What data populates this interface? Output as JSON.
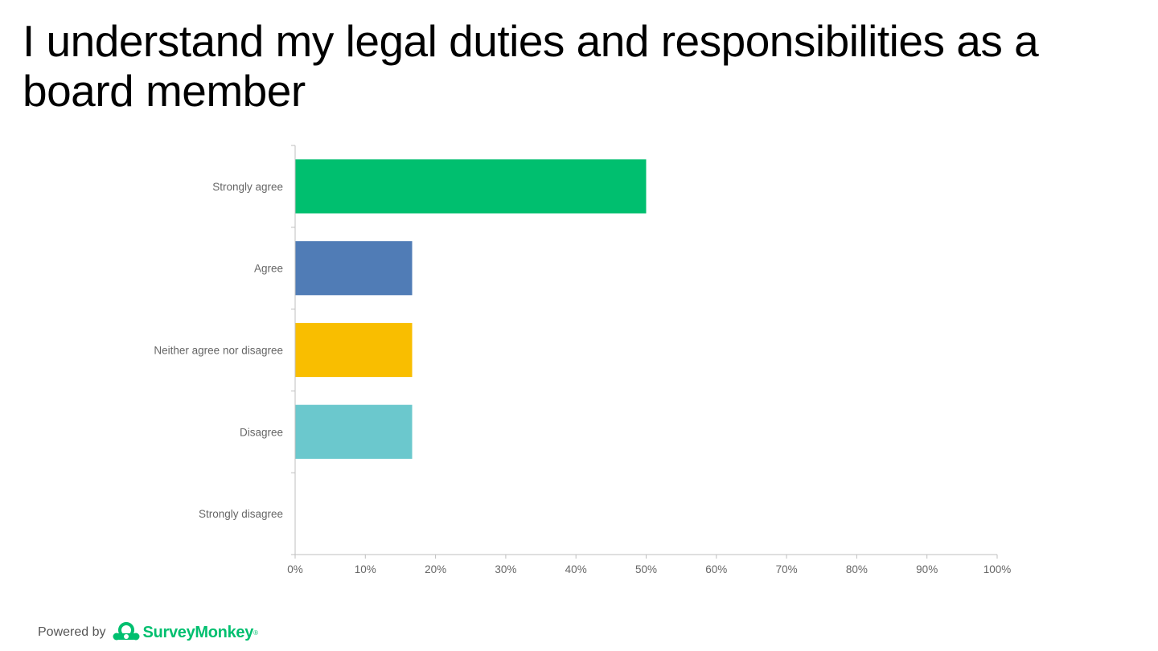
{
  "slide": {
    "title": "I understand my legal duties and responsibilities as a board member"
  },
  "footer": {
    "powered_by": "Powered by",
    "brand": "SurveyMonkey",
    "trademark": "®"
  },
  "chart_data": {
    "type": "bar",
    "orientation": "horizontal",
    "categories": [
      "Strongly agree",
      "Agree",
      "Neither agree nor disagree",
      "Disagree",
      "Strongly disagree"
    ],
    "values": [
      50,
      16.67,
      16.67,
      16.67,
      0
    ],
    "colors": [
      "#00bf6f",
      "#507cb6",
      "#f9be00",
      "#6bc8cd",
      "#ff8b4f"
    ],
    "xlim": [
      0,
      100
    ],
    "xticks": [
      0,
      10,
      20,
      30,
      40,
      50,
      60,
      70,
      80,
      90,
      100
    ],
    "tick_suffix": "%",
    "grid": false,
    "legend": "none"
  }
}
